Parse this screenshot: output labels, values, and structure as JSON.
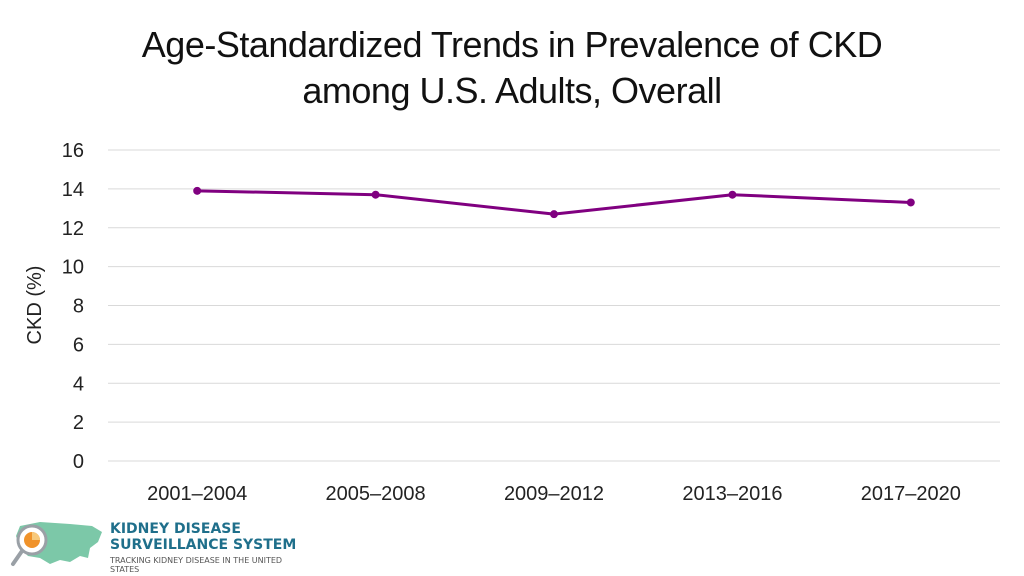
{
  "title": {
    "line1": "Age-Standardized Trends in Prevalence of CKD",
    "line2": "among U.S. Adults, Overall"
  },
  "chart_data": {
    "type": "line",
    "title": "Age-Standardized Trends in Prevalence of CKD among U.S. Adults, Overall",
    "xlabel": "",
    "ylabel": "CKD (%)",
    "categories": [
      "2001–2004",
      "2005–2008",
      "2009–2012",
      "2013–2016",
      "2017–2020"
    ],
    "series": [
      {
        "name": "Overall",
        "values": [
          13.9,
          13.7,
          12.7,
          13.7,
          13.3
        ]
      }
    ],
    "ylim": [
      0,
      16
    ],
    "yticks": [
      0,
      2,
      4,
      6,
      8,
      10,
      12,
      14,
      16
    ],
    "grid": true,
    "legend": "none",
    "line_color": "#800080",
    "grid_color": "#d9d9d9"
  },
  "logo": {
    "line1": "KIDNEY DISEASE",
    "line2": "SURVEILLANCE SYSTEM",
    "line3": "TRACKING KIDNEY DISEASE IN THE UNITED STATES",
    "colors": {
      "teal": "#1f6f8b",
      "green": "#7cc8a8",
      "orange": "#f0932b"
    }
  }
}
